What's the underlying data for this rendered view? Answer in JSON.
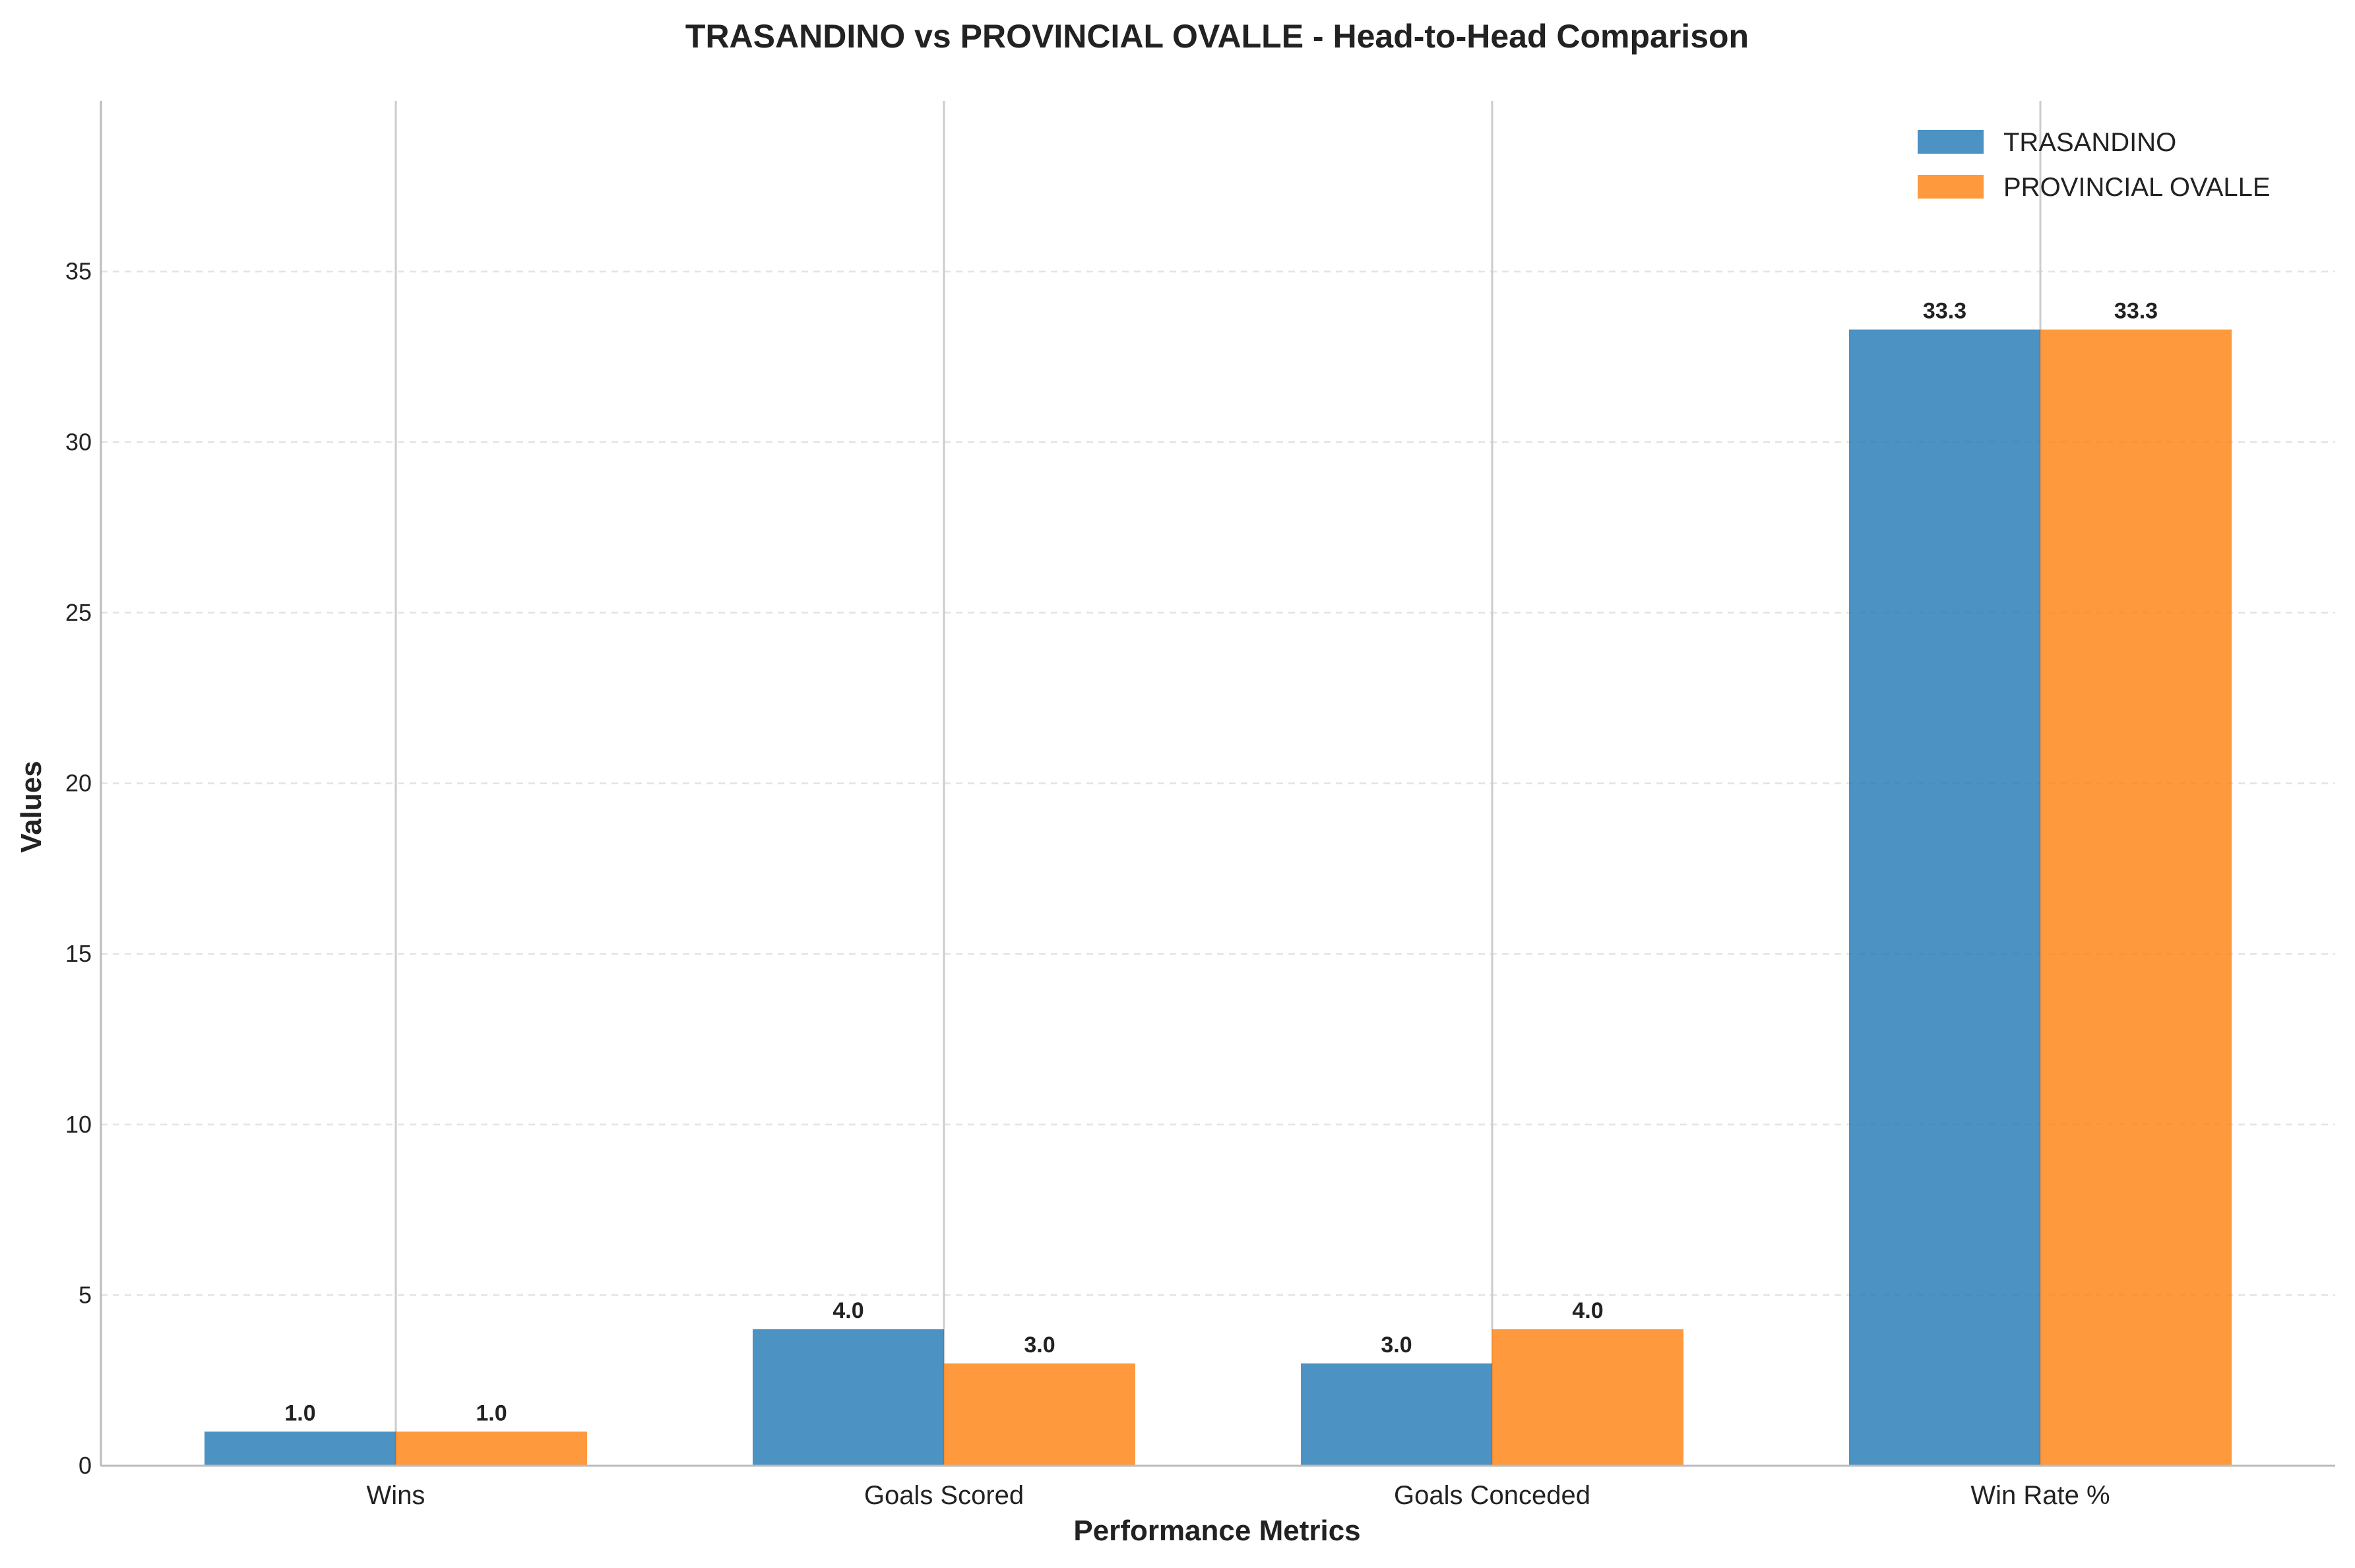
{
  "chart_data": {
    "type": "bar",
    "title": "TRASANDINO vs PROVINCIAL OVALLE - Head-to-Head Comparison",
    "xlabel": "Performance Metrics",
    "ylabel": "Values",
    "categories": [
      "Wins",
      "Goals Scored",
      "Goals Conceded",
      "Win Rate %"
    ],
    "series": [
      {
        "name": "TRASANDINO",
        "color": "#1f77b4",
        "values": [
          1.0,
          4.0,
          3.0,
          33.3
        ],
        "labels": [
          "1.0",
          "4.0",
          "3.0",
          "33.3"
        ]
      },
      {
        "name": "PROVINCIAL OVALLE",
        "color": "#ff7f0e",
        "values": [
          1.0,
          3.0,
          4.0,
          33.3
        ],
        "labels": [
          "1.0",
          "3.0",
          "4.0",
          "33.3"
        ]
      }
    ],
    "ylim": [
      0,
      40
    ],
    "yticks": [
      0,
      5,
      10,
      15,
      20,
      25,
      30,
      35
    ],
    "ytick_labels": [
      "0",
      "5",
      "10",
      "15",
      "20",
      "25",
      "30",
      "35"
    ],
    "grid": "horizontal dashed",
    "legend_position": "top-right"
  }
}
